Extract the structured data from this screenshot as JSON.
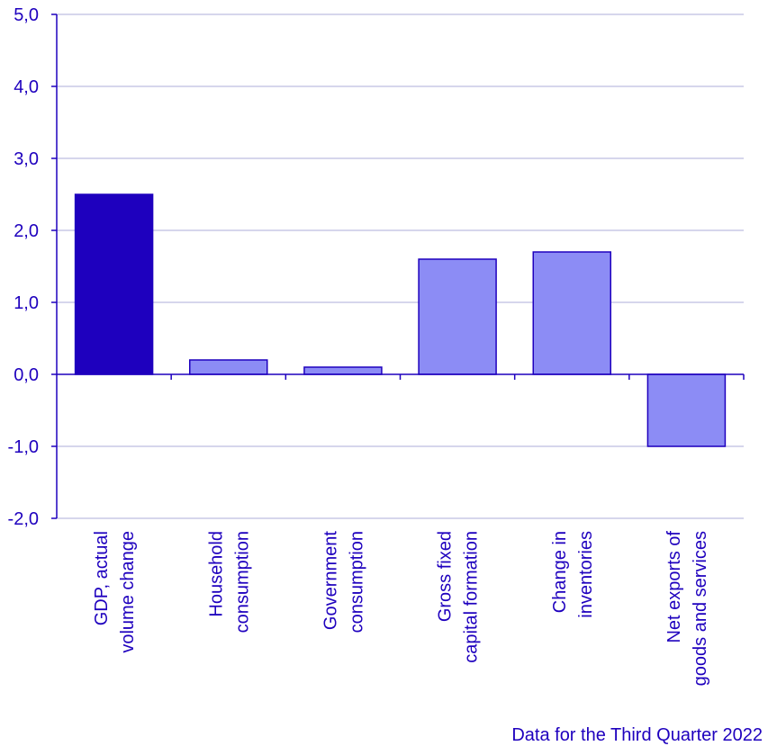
{
  "chart_data": {
    "type": "bar",
    "categories": [
      [
        "GDP, actual",
        "volume change"
      ],
      [
        "Household",
        "consumption"
      ],
      [
        "Government",
        "consumption"
      ],
      [
        "Gross fixed",
        "capital formation"
      ],
      [
        "Change in",
        "inventories"
      ],
      [
        "Net exports of",
        "goods and services"
      ]
    ],
    "values": [
      2.5,
      0.2,
      0.1,
      1.6,
      1.7,
      -1.0
    ],
    "ylim": [
      -2.0,
      5.0
    ],
    "yticks": [
      "-2,0",
      "-1,0",
      "0,0",
      "1,0",
      "2,0",
      "3,0",
      "4,0",
      "5,0"
    ],
    "ytick_values": [
      -2,
      -1,
      0,
      1,
      2,
      3,
      4,
      5
    ],
    "grid": true,
    "title": "",
    "xlabel": "",
    "ylabel": "",
    "colors": {
      "highlight": "#1E00BE",
      "bar": "#8C8CF5",
      "axis": "#1E00BE",
      "grid": "#C8C8E6"
    },
    "note": "Data for the Third Quarter 2022"
  }
}
